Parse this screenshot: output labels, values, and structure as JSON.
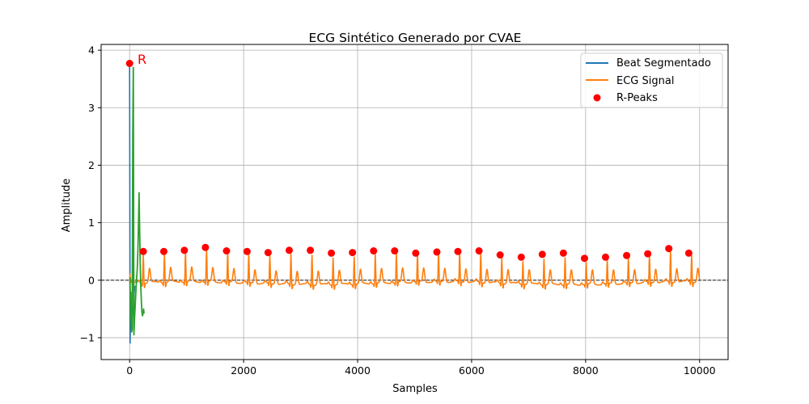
{
  "chart_data": {
    "type": "line",
    "title": "ECG Sintético Generado por CVAE",
    "xlabel": "Samples",
    "ylabel": "Amplitude",
    "xlim": [
      -500,
      10500
    ],
    "ylim": [
      -1.38,
      4.1
    ],
    "xticks": [
      0,
      2000,
      4000,
      6000,
      8000,
      10000
    ],
    "xtick_labels": [
      "0",
      "2000",
      "4000",
      "6000",
      "8000",
      "10000"
    ],
    "yticks": [
      -1,
      0,
      1,
      2,
      3,
      4
    ],
    "ytick_labels": [
      "−1",
      "0",
      "1",
      "2",
      "3",
      "4"
    ],
    "grid": true,
    "legend_position": "top-right",
    "reference_line": {
      "y": 0,
      "style": "dashed",
      "color": "#000000"
    },
    "annotation": {
      "text": "R",
      "x": 0,
      "y": 3.77,
      "color": "#ff0000"
    },
    "ecg_params": {
      "beat_count": 28,
      "first_beat": 240,
      "beat_interval": 370,
      "length": 10000
    },
    "series": [
      {
        "name": "Beat Segmentado",
        "color": "#1f77b4",
        "x": [
          0,
          4,
          8,
          12,
          16,
          20,
          24,
          28,
          32,
          40,
          50,
          60,
          70,
          80,
          90
        ],
        "y": [
          3.77,
          1.5,
          -1.1,
          -0.8,
          -0.5,
          -0.2,
          -0.35,
          -0.6,
          -0.8,
          -0.7,
          -0.6,
          -0.5,
          -0.4,
          -0.2,
          -0.1
        ]
      },
      {
        "name": "ECG Signal",
        "color": "#ff7f0e",
        "r_amplitudes": [
          0.49,
          0.5,
          0.52,
          0.57,
          0.51,
          0.5,
          0.48,
          0.52,
          0.52,
          0.47,
          0.48,
          0.51,
          0.51,
          0.47,
          0.49,
          0.5,
          0.51,
          0.44,
          0.4,
          0.45,
          0.47,
          0.38,
          0.4,
          0.43,
          0.46,
          0.55,
          0.47,
          0.5
        ]
      },
      {
        "name": "",
        "color": "#2ca02c",
        "x": [
          5,
          15,
          25,
          35,
          45,
          55,
          65,
          75,
          85,
          95,
          105,
          115,
          125,
          135,
          145,
          155,
          165,
          175,
          185,
          195,
          205,
          215,
          225,
          235,
          245,
          252
        ],
        "y": [
          0.05,
          -0.4,
          -0.7,
          -0.9,
          -0.85,
          2.5,
          3.7,
          -0.95,
          -0.7,
          -0.5,
          -0.3,
          -0.1,
          0.05,
          0.2,
          0.5,
          0.9,
          1.52,
          0.9,
          0.3,
          -0.1,
          -0.35,
          -0.55,
          -0.62,
          -0.58,
          -0.5,
          -0.58
        ]
      },
      {
        "name": "R-Peaks",
        "color": "#ff0000",
        "x": [
          0,
          240,
          600,
          960,
          1330,
          1700,
          2060,
          2430,
          2800,
          3170,
          3540,
          3910,
          4280,
          4650,
          5020,
          5390,
          5760,
          6130,
          6500,
          6870,
          7240,
          7610,
          7980,
          8350,
          8720,
          9090,
          9460,
          9810
        ],
        "y": [
          3.77,
          0.5,
          0.5,
          0.52,
          0.57,
          0.51,
          0.5,
          0.48,
          0.52,
          0.52,
          0.47,
          0.48,
          0.51,
          0.51,
          0.47,
          0.49,
          0.5,
          0.51,
          0.44,
          0.4,
          0.45,
          0.47,
          0.38,
          0.4,
          0.43,
          0.46,
          0.55,
          0.47
        ]
      }
    ],
    "legend": [
      "Beat Segmentado",
      "ECG Signal",
      "R-Peaks"
    ]
  }
}
